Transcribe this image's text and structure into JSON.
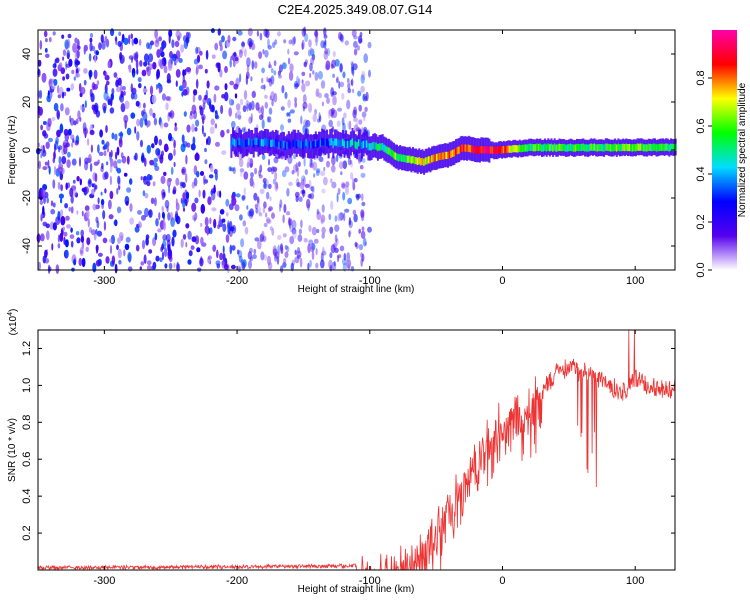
{
  "title": "C2E4.2025.349.08.07.G14",
  "chart_data": [
    {
      "type": "heatmap",
      "name": "spectrogram",
      "xlabel": "Height of straight line (km)",
      "ylabel": "Frequency (Hz)",
      "xlim": [
        -350,
        130
      ],
      "ylim": [
        -50,
        50
      ],
      "xticks": [
        -300,
        -200,
        -100,
        0,
        100
      ],
      "yticks": [
        -40,
        -20,
        0,
        20,
        40
      ],
      "colorbar": {
        "label": "Normalized spectral amplitude",
        "range": [
          0,
          1
        ],
        "ticks": [
          "0.0",
          "0.2",
          "0.4",
          "0.6",
          "0.8"
        ],
        "colors": [
          "#ffffff",
          "#5500ee",
          "#0000ff",
          "#00ddff",
          "#00ff00",
          "#ffff00",
          "#ff0000",
          "#ff00aa"
        ]
      },
      "signal_trace": {
        "x": [
          -205,
          -180,
          -160,
          -140,
          -120,
          -100,
          -90,
          -80,
          -70,
          -60,
          -50,
          -40,
          -30,
          -20,
          -10,
          0,
          20,
          60,
          100,
          130
        ],
        "freq": [
          3,
          3,
          2,
          3,
          3,
          2,
          1,
          -3,
          -4,
          -5,
          -3,
          -2,
          1,
          0,
          0,
          0,
          1,
          1,
          1,
          1
        ],
        "amplitude": [
          0.35,
          0.35,
          0.3,
          0.3,
          0.4,
          0.45,
          0.5,
          0.6,
          0.6,
          0.7,
          0.75,
          0.8,
          0.8,
          0.9,
          0.9,
          0.8,
          0.55,
          0.55,
          0.6,
          0.55
        ]
      },
      "noise_region": {
        "x_from": -350,
        "x_to": -100,
        "amplitude": 0.15
      }
    },
    {
      "type": "line",
      "name": "snr",
      "xlabel": "Height of straight line (km)",
      "ylabel": "SNR (10 * v/v)",
      "scale_label": "(x10",
      "scale_exponent": "4",
      "xlim": [
        -350,
        130
      ],
      "ylim": [
        0,
        1.3
      ],
      "xticks": [
        -300,
        -200,
        -100,
        0,
        100
      ],
      "yticks": [
        "0.2",
        "0.4",
        "0.6",
        "0.8",
        "1.0",
        "1.2"
      ],
      "color": "#ee3333",
      "envelope": {
        "x": [
          -350,
          -120,
          -100,
          -80,
          -60,
          -50,
          -40,
          -30,
          -20,
          -10,
          0,
          10,
          20,
          30,
          40,
          50,
          60,
          70,
          80,
          90,
          100,
          110,
          130
        ],
        "y": [
          0.02,
          0.03,
          0.04,
          0.1,
          0.18,
          0.3,
          0.45,
          0.55,
          0.7,
          0.82,
          0.9,
          0.95,
          0.97,
          1.02,
          1.1,
          1.15,
          1.12,
          1.1,
          1.05,
          1.0,
          1.08,
          1.03,
          1.02
        ]
      }
    }
  ]
}
